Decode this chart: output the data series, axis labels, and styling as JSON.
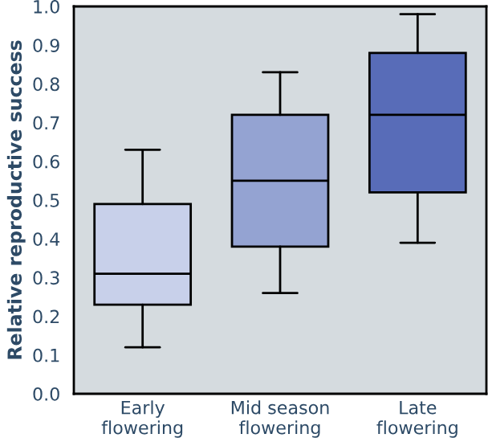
{
  "chart_data": {
    "type": "box",
    "ylabel": "Relative reproductive success",
    "categories": [
      "Early\nflowering",
      "Mid season\nflowering",
      "Late\nflowering"
    ],
    "boxes": [
      {
        "low": 0.12,
        "q1": 0.23,
        "median": 0.31,
        "q3": 0.49,
        "high": 0.63
      },
      {
        "low": 0.26,
        "q1": 0.38,
        "median": 0.55,
        "q3": 0.72,
        "high": 0.83
      },
      {
        "low": 0.39,
        "q1": 0.52,
        "median": 0.72,
        "q3": 0.88,
        "high": 0.98
      }
    ],
    "colors": [
      "#c8d0ea",
      "#94a3d2",
      "#586cb8"
    ],
    "ylim": [
      0,
      1
    ],
    "yticks": [
      {
        "value": 0,
        "label": "0.0"
      },
      {
        "value": 0.1,
        "label": "0.1"
      },
      {
        "value": 0.2,
        "label": "0.2"
      },
      {
        "value": 0.3,
        "label": "0.3"
      },
      {
        "value": 0.4,
        "label": "0.4"
      },
      {
        "value": 0.5,
        "label": "0.5"
      },
      {
        "value": 0.6,
        "label": "0.6"
      },
      {
        "value": 0.7,
        "label": "0.7"
      },
      {
        "value": 0.8,
        "label": "0.8"
      },
      {
        "value": 0.9,
        "label": "0.9"
      },
      {
        "value": 1,
        "label": "1.0"
      }
    ],
    "grid": false
  }
}
